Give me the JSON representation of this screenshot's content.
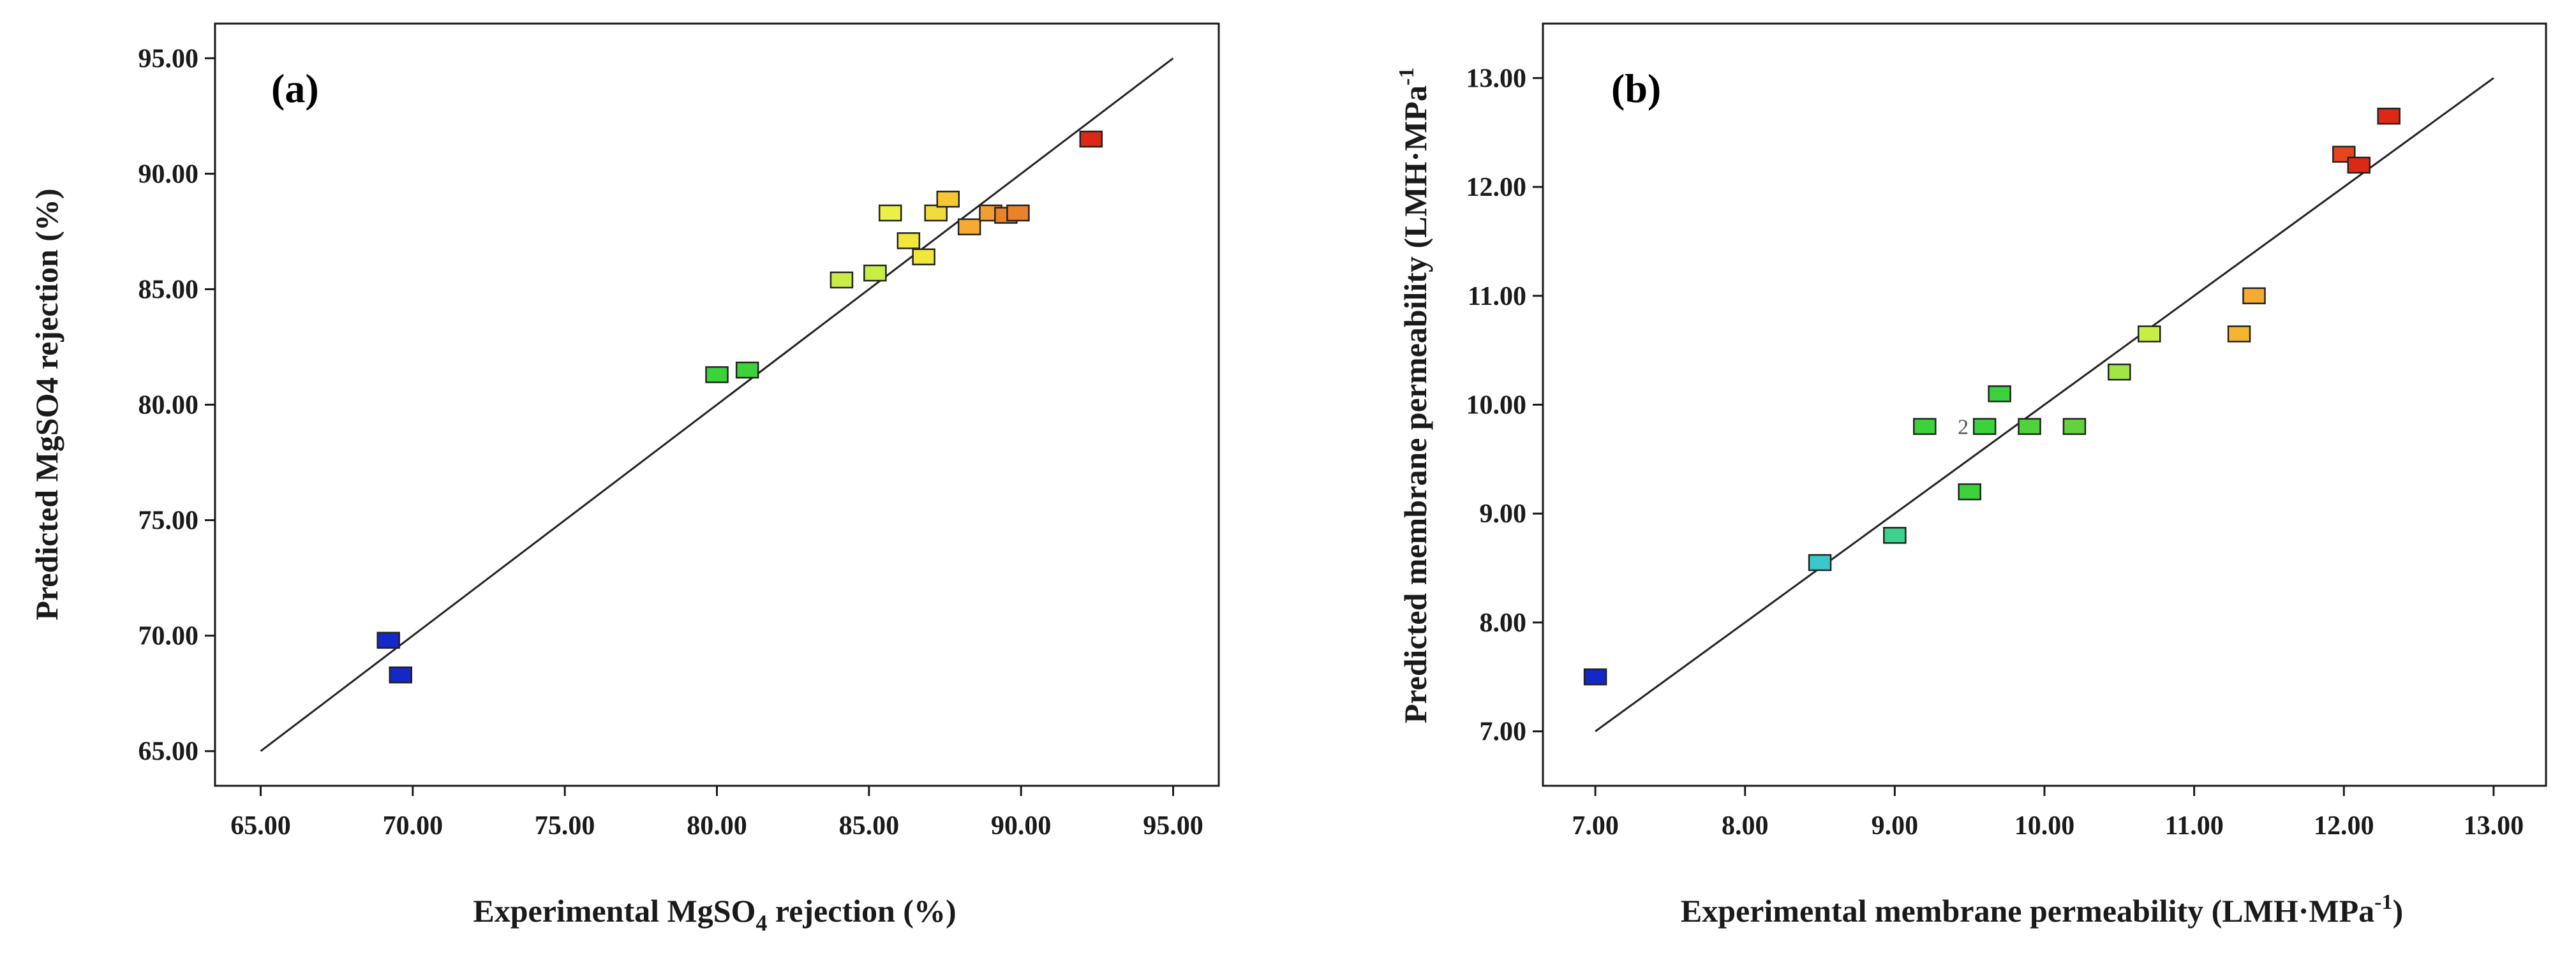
{
  "chart_data": [
    {
      "type": "scatter",
      "panel_label": "(a)",
      "xlabel": {
        "pre": "Experimental MgSO",
        "sub": "4",
        "post": " rejection  (%)"
      },
      "ylabel": "Predicted MgSO4 rejection (%)",
      "xlim": [
        63.5,
        96.5
      ],
      "ylim": [
        63.5,
        96.5
      ],
      "xticks": [
        65,
        70,
        75,
        80,
        85,
        90,
        95
      ],
      "yticks": [
        65,
        70,
        75,
        80,
        85,
        90,
        95
      ],
      "tick_format": "0.00",
      "reference_line": {
        "from": [
          65,
          65
        ],
        "to": [
          95,
          95
        ]
      },
      "grid": false,
      "points": [
        {
          "x": 69.2,
          "y": 69.8,
          "color": "#1428c8"
        },
        {
          "x": 69.6,
          "y": 68.3,
          "color": "#1428c8"
        },
        {
          "x": 80.0,
          "y": 81.3,
          "color": "#3cd23c"
        },
        {
          "x": 81.0,
          "y": 81.5,
          "color": "#3cd23c"
        },
        {
          "x": 84.1,
          "y": 85.4,
          "color": "#c8ee46"
        },
        {
          "x": 85.2,
          "y": 85.7,
          "color": "#c8ee46"
        },
        {
          "x": 85.7,
          "y": 88.3,
          "color": "#ebf046"
        },
        {
          "x": 86.3,
          "y": 87.1,
          "color": "#f0e63c"
        },
        {
          "x": 86.8,
          "y": 86.4,
          "color": "#f0e63c"
        },
        {
          "x": 87.2,
          "y": 88.3,
          "color": "#f0dc3c"
        },
        {
          "x": 87.6,
          "y": 88.9,
          "color": "#f5c832"
        },
        {
          "x": 88.3,
          "y": 87.7,
          "color": "#f5aa32"
        },
        {
          "x": 89.0,
          "y": 88.3,
          "color": "#f0a032"
        },
        {
          "x": 89.5,
          "y": 88.2,
          "color": "#eb8228"
        },
        {
          "x": 89.9,
          "y": 88.3,
          "color": "#eb8228"
        },
        {
          "x": 92.3,
          "y": 91.5,
          "color": "#dc2814"
        }
      ]
    },
    {
      "type": "scatter",
      "panel_label": "(b)",
      "xlabel": {
        "pre": "Experimental membrane permeability (LMH·MPa",
        "sup": "-1",
        "post": ")"
      },
      "ylabel": {
        "pre": "Predicted membrane permeability (LMH·MPa",
        "sup": "-1"
      },
      "xlim": [
        6.65,
        13.35
      ],
      "ylim": [
        6.5,
        13.5
      ],
      "xticks": [
        7,
        8,
        9,
        10,
        11,
        12,
        13
      ],
      "yticks": [
        7,
        8,
        9,
        10,
        11,
        12,
        13
      ],
      "tick_format": "0.00",
      "reference_line": {
        "from": [
          7,
          7
        ],
        "to": [
          13,
          13
        ]
      },
      "grid": false,
      "points": [
        {
          "x": 7.0,
          "y": 7.5,
          "color": "#1428c8"
        },
        {
          "x": 8.5,
          "y": 8.55,
          "color": "#3cc8c8"
        },
        {
          "x": 9.0,
          "y": 8.8,
          "color": "#3cd28c"
        },
        {
          "x": 9.2,
          "y": 9.8,
          "color": "#3cd23c"
        },
        {
          "x": 9.5,
          "y": 9.2,
          "color": "#3cd23c"
        },
        {
          "x": 9.6,
          "y": 9.8,
          "color": "#3cd23c",
          "note": "2"
        },
        {
          "x": 9.7,
          "y": 10.1,
          "color": "#3cd23c"
        },
        {
          "x": 9.9,
          "y": 9.8,
          "color": "#50d23c"
        },
        {
          "x": 10.2,
          "y": 9.8,
          "color": "#64d23c"
        },
        {
          "x": 10.5,
          "y": 10.3,
          "color": "#a0e646"
        },
        {
          "x": 10.7,
          "y": 10.65,
          "color": "#c8ee46"
        },
        {
          "x": 11.3,
          "y": 10.65,
          "color": "#f5b432"
        },
        {
          "x": 11.4,
          "y": 11.0,
          "color": "#f5aa32"
        },
        {
          "x": 12.0,
          "y": 12.3,
          "color": "#e6461e"
        },
        {
          "x": 12.1,
          "y": 12.2,
          "color": "#dc2814"
        },
        {
          "x": 12.3,
          "y": 12.65,
          "color": "#dc2814"
        }
      ]
    }
  ]
}
